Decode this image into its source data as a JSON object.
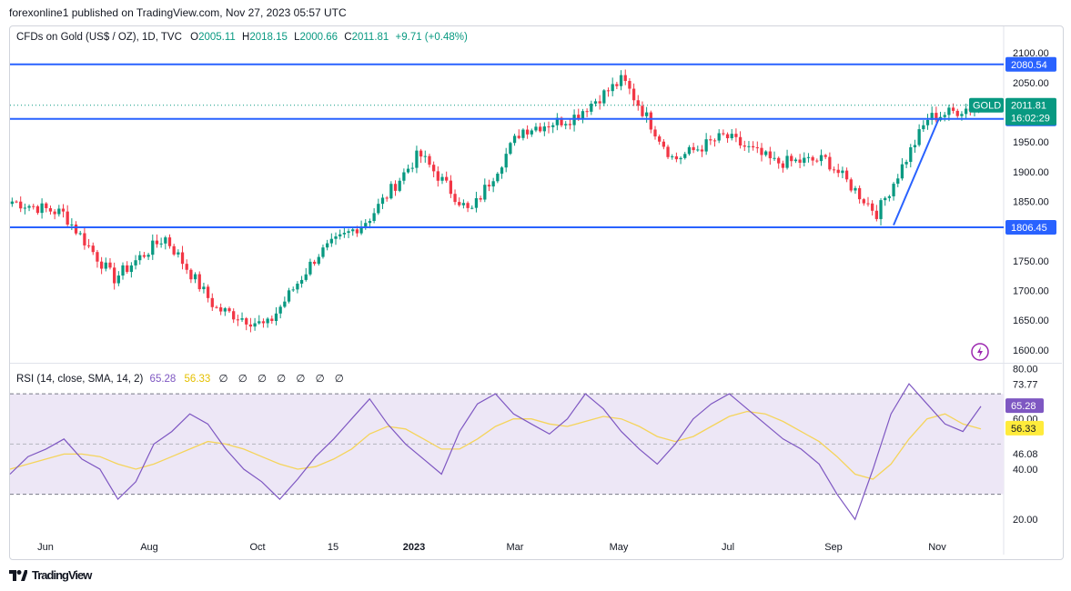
{
  "publisher_line": "forexonline1 published on TradingView.com, Nov 27, 2023 05:57 UTC",
  "legend": {
    "symbol": "CFDs on Gold (US$ / OZ), 1D, TVC",
    "o_label": "O",
    "o_value": "2005.11",
    "h_label": "H",
    "h_value": "2018.15",
    "l_label": "L",
    "l_value": "2000.66",
    "c_label": "C",
    "c_value": "2011.81",
    "change": "+9.71 (+0.48%)"
  },
  "rsi_legend": {
    "label": "RSI (14, close, SMA, 14, 2)",
    "rsi_value": "65.28",
    "ma_value": "56.33",
    "empty_values": "∅ ∅ ∅ ∅ ∅ ∅ ∅"
  },
  "footer": {
    "logo_text": "TradingView",
    "logo_icon": "tradingview-logo-icon"
  },
  "colors": {
    "up": "#089981",
    "down": "#f23645",
    "line": "#2962ff",
    "rsi": "#7e57c2",
    "rsi_ma": "#f5d45b",
    "rsi_band": "#ede7f6"
  },
  "chart_data": [
    {
      "type": "candlestick",
      "title": "CFDs on Gold (US$ / OZ), 1D, TVC",
      "x_ticks": [
        "Jun",
        "Aug",
        "Oct",
        "15",
        "2023",
        "Mar",
        "May",
        "Jul",
        "Sep",
        "Nov"
      ],
      "y_ticks": [
        "1600.00",
        "1650.00",
        "1700.00",
        "1750.00",
        "1800.00",
        "1850.00",
        "1900.00",
        "1950.00",
        "2000.00",
        "2050.00",
        "2100.00"
      ],
      "ylim": [
        1580,
        2120
      ],
      "horizontal_lines": [
        {
          "value": 2080.54,
          "label": "2080.54"
        },
        {
          "value": 1988.85,
          "label": "1988.85"
        },
        {
          "value": 1806.45,
          "label": "1806.45"
        }
      ],
      "price_tag": {
        "symbol": "GOLD",
        "price": "2011.81",
        "countdown": "16:02:29"
      },
      "trendline": {
        "from": [
          "Oct 6",
          1810
        ],
        "to": [
          "Oct 27",
          1990
        ]
      },
      "key_closes": [
        {
          "x": "May 2022",
          "y": 1850
        },
        {
          "x": "Jun 2022",
          "y": 1830
        },
        {
          "x": "Jul 2022",
          "y": 1720
        },
        {
          "x": "Aug 2022",
          "y": 1790
        },
        {
          "x": "Sep 2022",
          "y": 1670
        },
        {
          "x": "Oct 2022",
          "y": 1640
        },
        {
          "x": "Nov 2022",
          "y": 1760
        },
        {
          "x": "Dec 2022",
          "y": 1820
        },
        {
          "x": "Jan 2023",
          "y": 1930
        },
        {
          "x": "Feb 2023",
          "y": 1830
        },
        {
          "x": "Mar 2023",
          "y": 1970
        },
        {
          "x": "Apr 2023",
          "y": 1990
        },
        {
          "x": "May 2023",
          "y": 2055
        },
        {
          "x": "Jun 2023",
          "y": 1920
        },
        {
          "x": "Jul 2023",
          "y": 1960
        },
        {
          "x": "Aug 2023",
          "y": 1915
        },
        {
          "x": "Sep 2023",
          "y": 1920
        },
        {
          "x": "Oct 2023",
          "y": 1830
        },
        {
          "x": "Nov 2023",
          "y": 1990
        },
        {
          "x": "Nov 27 2023",
          "y": 2011.81
        }
      ]
    },
    {
      "type": "line",
      "title": "RSI (14, close, SMA, 14, 2)",
      "y_ticks": [
        "20.00",
        "40.00",
        "46.08",
        "60.00",
        "73.77",
        "80.00"
      ],
      "ylim": [
        15,
        82
      ],
      "bands": [
        30,
        70
      ],
      "midline": 50,
      "current": {
        "rsi": "65.28",
        "ma": "56.33"
      },
      "series": [
        {
          "name": "RSI",
          "values": [
            38,
            45,
            48,
            52,
            44,
            40,
            28,
            35,
            50,
            55,
            62,
            58,
            48,
            40,
            35,
            28,
            36,
            45,
            52,
            60,
            68,
            58,
            50,
            44,
            38,
            55,
            66,
            70,
            62,
            58,
            54,
            60,
            70,
            64,
            55,
            48,
            42,
            50,
            60,
            66,
            70,
            64,
            58,
            52,
            48,
            42,
            30,
            20,
            40,
            62,
            74,
            66,
            58,
            55,
            65
          ]
        },
        {
          "name": "RSI-based MA",
          "values": [
            40,
            42,
            44,
            46,
            46,
            45,
            42,
            40,
            42,
            45,
            48,
            51,
            50,
            48,
            45,
            42,
            40,
            41,
            44,
            48,
            54,
            57,
            56,
            52,
            48,
            48,
            52,
            57,
            60,
            60,
            58,
            57,
            59,
            61,
            60,
            57,
            53,
            51,
            53,
            57,
            61,
            63,
            62,
            59,
            55,
            51,
            45,
            38,
            36,
            42,
            52,
            60,
            62,
            58,
            56
          ]
        }
      ]
    }
  ]
}
